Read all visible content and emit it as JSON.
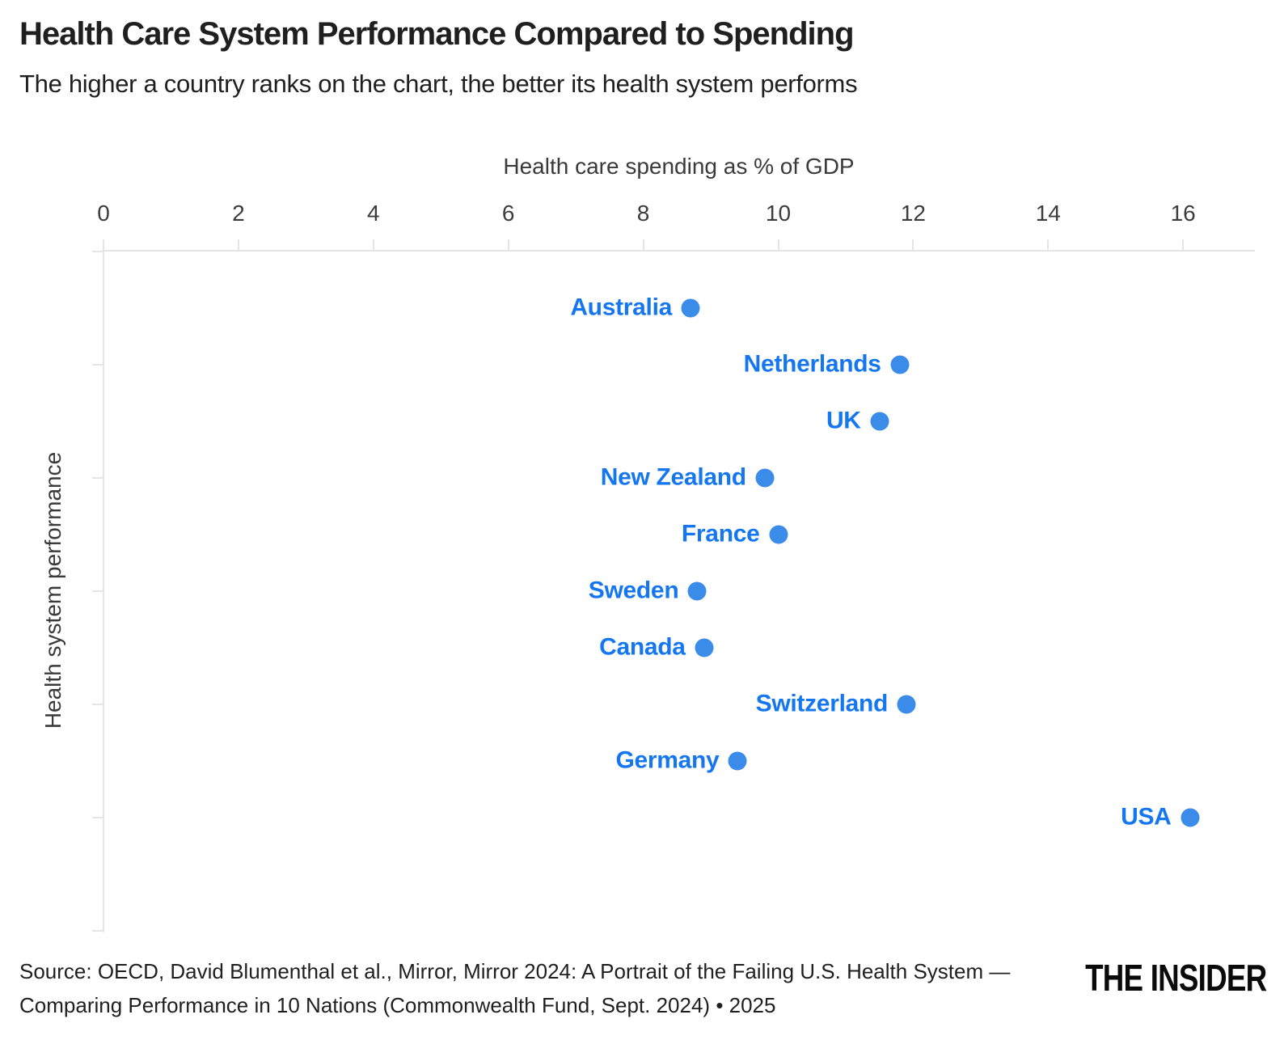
{
  "chart_data": {
    "type": "scatter",
    "title": "Health Care System Performance Compared to Spending",
    "subtitle": "The higher a country ranks on the chart, the better its health system performs",
    "xlabel": "Health care spending as % of GDP",
    "ylabel": "Health system performance",
    "x_ticks": [
      0,
      2,
      4,
      6,
      8,
      10,
      12,
      14,
      16
    ],
    "xlim": [
      0,
      17
    ],
    "y_rank_lim": [
      0,
      12
    ],
    "y_tick_ranks": [
      0,
      2,
      4,
      6,
      8,
      10,
      12
    ],
    "grid": false,
    "legend_position": "none",
    "marker": "circle",
    "points": [
      {
        "country": "Australia",
        "rank": 1,
        "spending_pct_gdp": 8.7
      },
      {
        "country": "Netherlands",
        "rank": 2,
        "spending_pct_gdp": 11.8
      },
      {
        "country": "UK",
        "rank": 3,
        "spending_pct_gdp": 11.5
      },
      {
        "country": "New Zealand",
        "rank": 4,
        "spending_pct_gdp": 9.8
      },
      {
        "country": "France",
        "rank": 5,
        "spending_pct_gdp": 10.0
      },
      {
        "country": "Sweden",
        "rank": 6,
        "spending_pct_gdp": 8.8
      },
      {
        "country": "Canada",
        "rank": 7,
        "spending_pct_gdp": 8.9
      },
      {
        "country": "Switzerland",
        "rank": 8,
        "spending_pct_gdp": 11.9
      },
      {
        "country": "Germany",
        "rank": 9,
        "spending_pct_gdp": 9.4
      },
      {
        "country": "USA",
        "rank": 10,
        "spending_pct_gdp": 16.1
      }
    ],
    "colors": {
      "background": "#ffffff",
      "dot": "#3b8ce9",
      "label": "#1577f0",
      "title_text": "#1f1f1f",
      "axis_text": "#3a3a3a",
      "tick_text": "#3c3c3c",
      "axis_line": "#e5e5e5",
      "source_text": "#1f1f1f",
      "logo_text": "#0a0a0a"
    }
  },
  "footer": {
    "source_line1": "Source: OECD, David Blumenthal et al., Mirror, Mirror 2024: A Portrait of the Failing U.S. Health System —",
    "source_line2": "Comparing Performance in 10 Nations (Commonwealth Fund, Sept. 2024) • 2025",
    "logo": "THE INSIDER"
  }
}
